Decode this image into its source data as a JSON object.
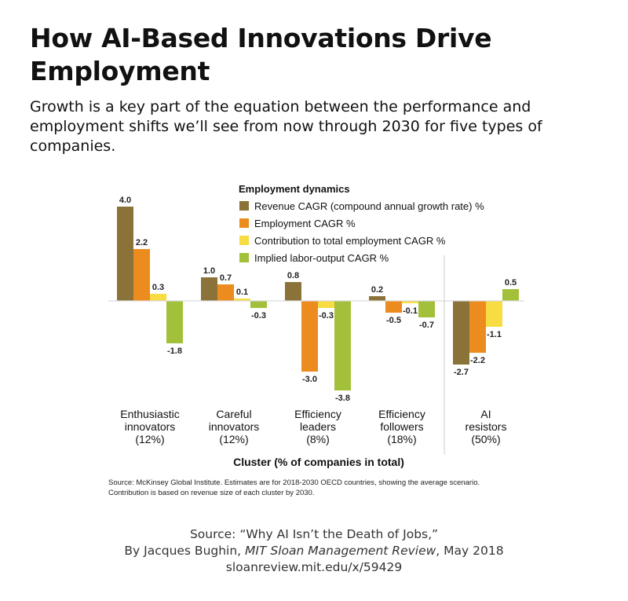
{
  "header": {
    "title": "How AI-Based Innovations Drive Employment",
    "subtitle": "Growth is a key part of the equation between the performance and employment shifts we’ll see from now through 2030 for five types of companies."
  },
  "chart_data": {
    "type": "bar",
    "legend_title": "Employment dynamics",
    "legend_position": "top-center",
    "xlabel": "Cluster (% of companies in total)",
    "ylabel": "",
    "ylim": [
      -4.0,
      4.0
    ],
    "grid": false,
    "categories": [
      [
        "Enthusiastic",
        "innovators",
        "(12%)"
      ],
      [
        "Careful",
        "innovators",
        "(12%)"
      ],
      [
        "Efficiency",
        "leaders",
        "(8%)"
      ],
      [
        "Efficiency",
        "followers",
        "(18%)"
      ],
      [
        "AI",
        "resistors",
        "(50%)"
      ]
    ],
    "series": [
      {
        "name": "Revenue CAGR (compound annual growth rate) %",
        "color": "#8b7238",
        "values": [
          4.0,
          1.0,
          0.8,
          0.2,
          -2.7
        ],
        "labels": [
          "4.0",
          "1.0",
          "0.8",
          "0.2",
          "-2.7"
        ]
      },
      {
        "name": "Employment CAGR %",
        "color": "#ec8c1e",
        "values": [
          2.2,
          0.7,
          -3.0,
          -0.5,
          -2.2
        ],
        "labels": [
          "2.2",
          "0.7",
          "-3.0",
          "-0.5",
          "-2.2"
        ]
      },
      {
        "name": "Contribution to total employment CAGR %",
        "color": "#f7dc42",
        "values": [
          0.3,
          0.1,
          -0.3,
          -0.1,
          -1.1
        ],
        "labels": [
          "0.3",
          "0.1",
          "-0.3",
          "-0.1",
          "-1.1"
        ]
      },
      {
        "name": "Implied labor-output CAGR %",
        "color": "#a2c03a",
        "values": [
          -1.8,
          -0.3,
          -3.8,
          -0.7,
          0.5
        ],
        "labels": [
          "-1.8",
          "-0.3",
          "-3.8",
          "-0.7",
          "0.5"
        ]
      }
    ]
  },
  "notes": {
    "source_line1": "Source: McKinsey Global Institute. Estimates are for 2018-2030 OECD countries, showing the average scenario.",
    "source_line2": "Contribution is based on revenue size of each cluster by 2030."
  },
  "citation": {
    "line1": "Source: “Why AI Isn’t the Death of Jobs,”",
    "line2_prefix": "By Jacques Bughin, ",
    "line2_italic": "MIT Sloan Management Review",
    "line2_suffix": ", May 2018",
    "line3": "sloanreview.mit.edu/x/59429"
  }
}
